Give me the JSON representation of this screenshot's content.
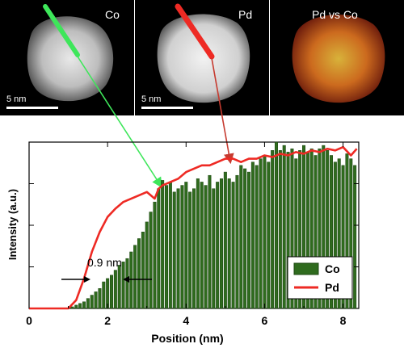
{
  "panels": [
    {
      "label": "Co",
      "scale_label": "5 nm"
    },
    {
      "label": "Pd",
      "scale_label": "5 nm"
    },
    {
      "label": "Pd vs Co"
    }
  ],
  "colors": {
    "co": "#2f6b1e",
    "pd": "#ee2a24",
    "arrow_green": "#3ee65a",
    "arrow_red": "#c63a2f"
  },
  "chart_data": {
    "type": "bar",
    "xlabel": "Position (nm)",
    "ylabel": "Intensity (a.u.)",
    "xlim": [
      0,
      8.4
    ],
    "ylim": [
      0,
      1.0
    ],
    "x_ticks": [
      0,
      2,
      4,
      6,
      8
    ],
    "legend": {
      "position": "bottom-right",
      "entries": [
        "Co",
        "Pd"
      ]
    },
    "annotation": "0.9 nm",
    "series": [
      {
        "name": "Co",
        "kind": "bar",
        "x": [
          1.1,
          1.2,
          1.3,
          1.4,
          1.5,
          1.6,
          1.7,
          1.8,
          1.9,
          2.0,
          2.1,
          2.2,
          2.3,
          2.4,
          2.5,
          2.6,
          2.7,
          2.8,
          2.9,
          3.0,
          3.1,
          3.2,
          3.3,
          3.4,
          3.5,
          3.6,
          3.7,
          3.8,
          3.9,
          4.0,
          4.1,
          4.2,
          4.3,
          4.4,
          4.5,
          4.6,
          4.7,
          4.8,
          4.9,
          5.0,
          5.1,
          5.2,
          5.3,
          5.4,
          5.5,
          5.6,
          5.7,
          5.8,
          5.9,
          6.0,
          6.1,
          6.2,
          6.3,
          6.4,
          6.5,
          6.6,
          6.7,
          6.8,
          6.9,
          7.0,
          7.1,
          7.2,
          7.3,
          7.4,
          7.5,
          7.6,
          7.7,
          7.8,
          7.9,
          8.0,
          8.1,
          8.2,
          8.3
        ],
        "values": [
          0.01,
          0.02,
          0.03,
          0.04,
          0.06,
          0.08,
          0.1,
          0.12,
          0.16,
          0.18,
          0.2,
          0.23,
          0.26,
          0.28,
          0.3,
          0.34,
          0.38,
          0.42,
          0.46,
          0.52,
          0.58,
          0.64,
          0.72,
          0.77,
          0.74,
          0.76,
          0.7,
          0.72,
          0.74,
          0.76,
          0.7,
          0.72,
          0.78,
          0.76,
          0.74,
          0.8,
          0.72,
          0.76,
          0.78,
          0.82,
          0.78,
          0.76,
          0.8,
          0.86,
          0.84,
          0.82,
          0.88,
          0.86,
          0.9,
          0.92,
          0.88,
          0.95,
          1.0,
          0.95,
          0.98,
          0.94,
          0.96,
          0.9,
          0.95,
          0.98,
          0.94,
          0.96,
          0.92,
          0.96,
          0.98,
          0.95,
          0.92,
          0.88,
          0.9,
          0.86,
          0.93,
          0.9,
          0.86
        ]
      },
      {
        "name": "Pd",
        "kind": "line",
        "x": [
          0,
          1.0,
          1.2,
          1.4,
          1.6,
          1.8,
          2.0,
          2.2,
          2.4,
          2.6,
          2.8,
          3.0,
          3.1,
          3.2,
          3.3,
          3.4,
          3.6,
          3.8,
          4.0,
          4.2,
          4.4,
          4.6,
          4.8,
          5.0,
          5.2,
          5.4,
          5.6,
          5.8,
          6.0,
          6.2,
          6.4,
          6.6,
          6.8,
          7.0,
          7.2,
          7.4,
          7.6,
          7.8,
          8.0,
          8.2,
          8.35
        ],
        "values": [
          0,
          0.0,
          0.05,
          0.18,
          0.34,
          0.46,
          0.55,
          0.6,
          0.64,
          0.66,
          0.68,
          0.7,
          0.68,
          0.66,
          0.72,
          0.74,
          0.76,
          0.78,
          0.82,
          0.84,
          0.86,
          0.86,
          0.88,
          0.9,
          0.9,
          0.88,
          0.9,
          0.9,
          0.92,
          0.91,
          0.93,
          0.92,
          0.94,
          0.93,
          0.95,
          0.94,
          0.96,
          0.95,
          0.97,
          0.92,
          0.96
        ]
      }
    ]
  }
}
